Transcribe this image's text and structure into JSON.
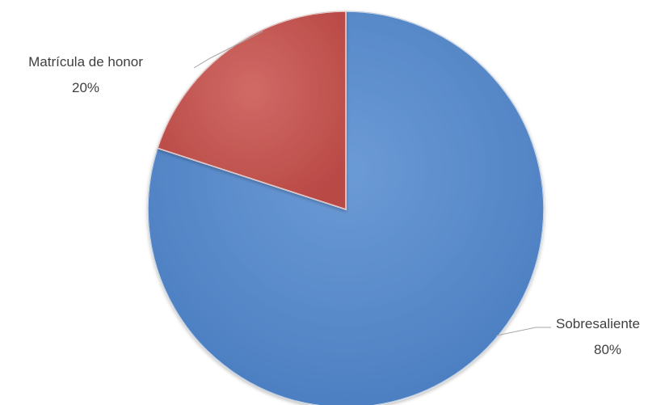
{
  "chart_data": {
    "type": "pie",
    "title": "",
    "start_angle_deg": 0,
    "direction": "clockwise",
    "slices": [
      {
        "name": "Sobresaliente",
        "value": 80,
        "value_label": "80%",
        "color": "#4F81BD",
        "edge_color": "#3A6499"
      },
      {
        "name": "Matrícula de honor",
        "value": 20,
        "value_label": "20%",
        "color": "#C0504D",
        "edge_color": "#943C3A"
      }
    ],
    "legend": "none",
    "labels_position": "outside-with-leader-lines"
  }
}
